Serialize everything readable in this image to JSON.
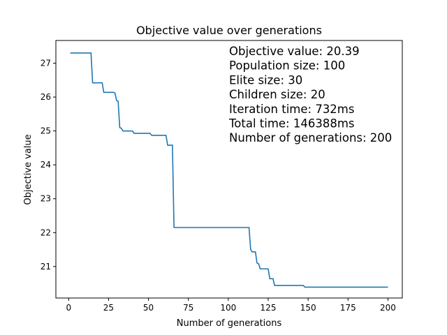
{
  "chart_data": {
    "type": "line",
    "title": "Objective value over generations",
    "xlabel": "Number of generations",
    "ylabel": "Objective value",
    "xlim": [
      -8,
      209
    ],
    "ylim": [
      20.07,
      27.67
    ],
    "xticks": [
      0,
      25,
      50,
      75,
      100,
      125,
      150,
      175,
      200
    ],
    "yticks": [
      21,
      22,
      23,
      24,
      25,
      26,
      27
    ],
    "grid": false,
    "color": "#1f77b4",
    "annotations": [
      "Objective value: 20.39",
      "Population size: 100",
      "Elite size: 30",
      "Children size: 20",
      "Iteration time: 732ms",
      "Total time: 146388ms",
      "Number of generations: 200"
    ],
    "series": [
      {
        "x": [
          1,
          14,
          15,
          21,
          22,
          28,
          29,
          30,
          31,
          32,
          33,
          34,
          40,
          41,
          51,
          52,
          61,
          62,
          65,
          66,
          113,
          114,
          115,
          117,
          118,
          119,
          120,
          121,
          125,
          126,
          128,
          129,
          147,
          148,
          200
        ],
        "y": [
          27.3,
          27.3,
          26.42,
          26.42,
          26.14,
          26.14,
          26.12,
          25.9,
          25.88,
          25.1,
          25.08,
          25.0,
          25.0,
          24.93,
          24.93,
          24.87,
          24.87,
          24.58,
          24.58,
          22.15,
          22.15,
          21.5,
          21.43,
          21.43,
          21.1,
          21.08,
          20.93,
          20.93,
          20.93,
          20.64,
          20.64,
          20.44,
          20.44,
          20.39,
          20.39
        ]
      }
    ]
  }
}
